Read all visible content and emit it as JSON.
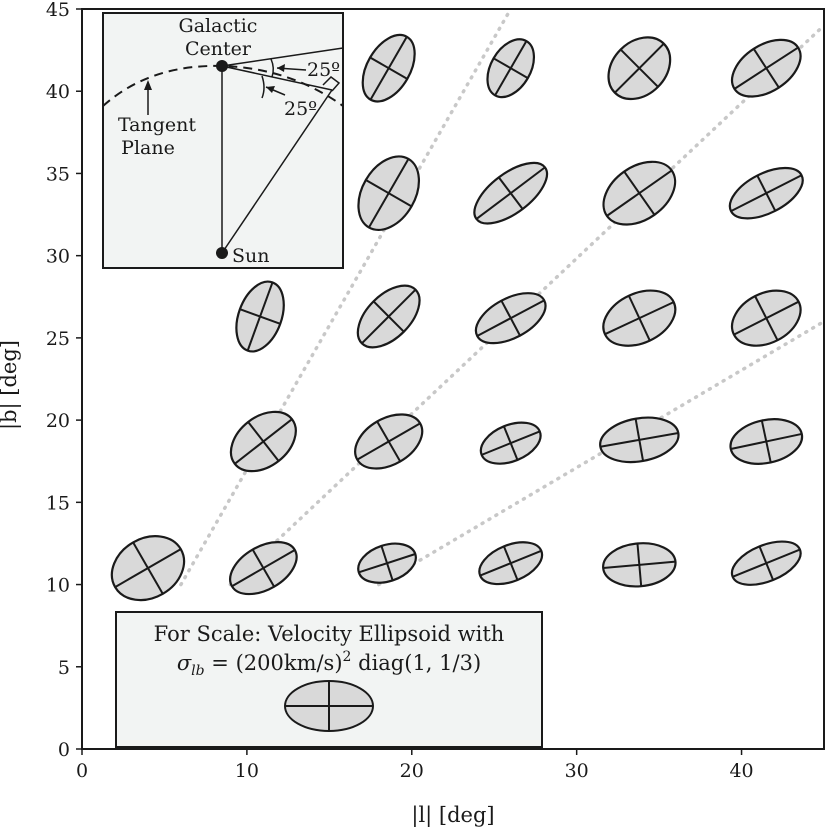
{
  "chart_data": {
    "type": "scatter",
    "xlabel": "|l| [deg]",
    "ylabel": "|b| [deg]",
    "xlim": [
      0,
      45
    ],
    "ylim": [
      0,
      45
    ],
    "x_ticks": [
      0,
      10,
      20,
      30,
      40
    ],
    "y_ticks": [
      0,
      5,
      10,
      15,
      20,
      25,
      30,
      35,
      40,
      45
    ],
    "ellipses": [
      {
        "l": 4,
        "b": 11,
        "a": 2.3,
        "c": 1.8,
        "angle": 30
      },
      {
        "l": 11,
        "b": 11,
        "a": 2.2,
        "c": 1.3,
        "angle": 30
      },
      {
        "l": 18.5,
        "b": 11.3,
        "a": 1.8,
        "c": 1.1,
        "angle": 18
      },
      {
        "l": 26,
        "b": 11.3,
        "a": 2.0,
        "c": 1.1,
        "angle": 22
      },
      {
        "l": 33.8,
        "b": 11.2,
        "a": 2.2,
        "c": 1.3,
        "angle": 5
      },
      {
        "l": 41.5,
        "b": 11.3,
        "a": 2.2,
        "c": 1.1,
        "angle": 22
      },
      {
        "l": 11,
        "b": 18.7,
        "a": 2.2,
        "c": 1.5,
        "angle": 38
      },
      {
        "l": 18.6,
        "b": 18.7,
        "a": 2.2,
        "c": 1.4,
        "angle": 30
      },
      {
        "l": 26,
        "b": 18.6,
        "a": 1.9,
        "c": 1.1,
        "angle": 22
      },
      {
        "l": 33.8,
        "b": 18.8,
        "a": 2.4,
        "c": 1.3,
        "angle": 10
      },
      {
        "l": 41.5,
        "b": 18.7,
        "a": 2.2,
        "c": 1.3,
        "angle": 12
      },
      {
        "l": 10.8,
        "b": 26.3,
        "a": 2.2,
        "c": 1.3,
        "angle": 70
      },
      {
        "l": 18.6,
        "b": 26.3,
        "a": 2.3,
        "c": 1.3,
        "angle": 45
      },
      {
        "l": 26,
        "b": 26.2,
        "a": 2.3,
        "c": 1.2,
        "angle": 28
      },
      {
        "l": 33.8,
        "b": 26.2,
        "a": 2.3,
        "c": 1.5,
        "angle": 25
      },
      {
        "l": 41.5,
        "b": 26.2,
        "a": 2.2,
        "c": 1.5,
        "angle": 27
      },
      {
        "l": 18.6,
        "b": 33.8,
        "a": 2.4,
        "c": 1.6,
        "angle": 60
      },
      {
        "l": 26,
        "b": 33.8,
        "a": 2.6,
        "c": 1.2,
        "angle": 37
      },
      {
        "l": 33.8,
        "b": 33.8,
        "a": 2.4,
        "c": 1.6,
        "angle": 35
      },
      {
        "l": 41.5,
        "b": 33.8,
        "a": 2.4,
        "c": 1.2,
        "angle": 27
      },
      {
        "l": 18.6,
        "b": 41.4,
        "a": 2.2,
        "c": 1.3,
        "angle": 60
      },
      {
        "l": 26,
        "b": 41.4,
        "a": 1.9,
        "c": 1.2,
        "angle": 60
      },
      {
        "l": 33.8,
        "b": 41.4,
        "a": 2.1,
        "c": 1.6,
        "angle": 45
      },
      {
        "l": 41.5,
        "b": 41.4,
        "a": 2.3,
        "c": 1.4,
        "angle": 33
      }
    ],
    "guide_lines": [
      {
        "from": [
          6,
          10
        ],
        "to": [
          26,
          45
        ]
      },
      {
        "from": [
          9,
          10
        ],
        "to": [
          45,
          44
        ]
      },
      {
        "from": [
          18,
          10
        ],
        "to": [
          45,
          26
        ]
      }
    ]
  },
  "inset": {
    "galactic_center_label_1": "Galactic",
    "galactic_center_label_2": "Center",
    "angle_label_1": "25º",
    "angle_label_2": "25º",
    "tangent_label_1": "Tangent",
    "tangent_label_2": "Plane",
    "sun_label": "Sun"
  },
  "scale_box": {
    "line1": "For Scale: Velocity Ellipsoid with",
    "line2_prefix": "σ",
    "line2_sub": "lb",
    "line2_eq": " = (200km/s)",
    "line2_sup": "2",
    "line2_tail": " diag(1, 1/3)"
  },
  "colors": {
    "ellipse_fill": "#d9d9d9",
    "ellipse_stroke": "#1a1a1a",
    "guide_line": "#c8c8c8",
    "box_fill": "#f2f4f3"
  }
}
